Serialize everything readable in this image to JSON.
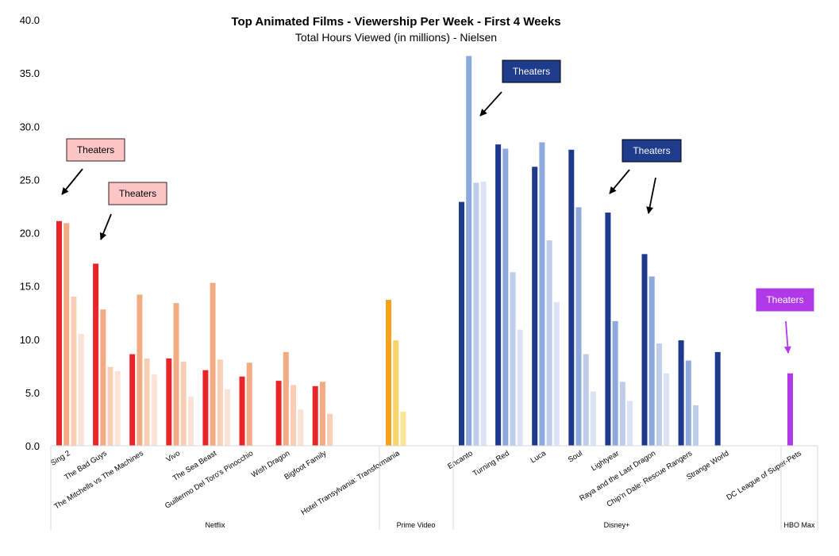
{
  "chart_data": {
    "type": "bar",
    "title": "Top Animated Films - Viewership Per Week - First 4 Weeks",
    "subtitle": "Total Hours Viewed (in millions) - Nielsen",
    "ylim": [
      0,
      40
    ],
    "yticks": [
      "0.0",
      "5.0",
      "10.0",
      "15.0",
      "20.0",
      "25.0",
      "30.0",
      "35.0",
      "40.0"
    ],
    "grid": false,
    "colors": {
      "Netflix": [
        "#e8262a",
        "#f3ab84",
        "#f8cfb6",
        "#fbe3d6"
      ],
      "Prime Video": [
        "#f4a11e",
        "#fad46b",
        "#fde497"
      ],
      "Disney+": [
        "#1e3a8c",
        "#8ea9dc",
        "#bdcdea",
        "#dbe3f4"
      ],
      "HBO Max": [
        "#b03ae8"
      ]
    },
    "groups": [
      {
        "name": "Netflix",
        "films": [
          {
            "name": "Sing 2",
            "values": [
              21.1,
              20.9,
              14.0,
              10.5
            ]
          },
          {
            "name": "The Bad Guys",
            "values": [
              17.1,
              12.8,
              7.4,
              7.0
            ]
          },
          {
            "name": "The Mitchells vs The Machines",
            "values": [
              8.6,
              14.2,
              8.2,
              6.7
            ]
          },
          {
            "name": "Vivo",
            "values": [
              8.2,
              13.4,
              7.9,
              4.6
            ]
          },
          {
            "name": "The Sea Beast",
            "values": [
              7.1,
              15.3,
              8.1,
              5.3
            ]
          },
          {
            "name": "Guillermo Del Toro's Pinocchio",
            "values": [
              6.5,
              7.8
            ]
          },
          {
            "name": "Wish Dragon",
            "values": [
              6.1,
              8.8,
              5.7,
              3.4
            ]
          },
          {
            "name": "Bigfoot Family",
            "values": [
              5.6,
              6.0,
              3.0
            ]
          }
        ]
      },
      {
        "name": "Prime Video",
        "films": [
          {
            "name": "Hotel Transylvania: Transformania",
            "values": [
              13.7,
              9.9,
              3.2
            ]
          }
        ]
      },
      {
        "name": "Disney+",
        "films": [
          {
            "name": "Encanto",
            "values": [
              22.9,
              36.6,
              24.7,
              24.8
            ]
          },
          {
            "name": "Turning Red",
            "values": [
              28.3,
              27.9,
              16.3,
              10.9
            ]
          },
          {
            "name": "Luca",
            "values": [
              26.2,
              28.5,
              19.3,
              13.5
            ]
          },
          {
            "name": "Soul",
            "values": [
              27.8,
              22.4,
              8.6,
              5.1
            ]
          },
          {
            "name": "Lightyear",
            "values": [
              21.9,
              11.7,
              6.0,
              4.2
            ]
          },
          {
            "name": "Raya and the Last Dragon",
            "values": [
              18.0,
              15.9,
              9.6,
              6.8
            ]
          },
          {
            "name": "Chip'n Dale: Rescue Rangers",
            "values": [
              9.9,
              8.0,
              3.8
            ]
          },
          {
            "name": "Strange World",
            "values": [
              8.8
            ]
          }
        ]
      },
      {
        "name": "HBO Max",
        "films": [
          {
            "name": "DC League of Super-Pets",
            "values": [
              6.8
            ]
          }
        ]
      }
    ],
    "annotations": [
      {
        "text": "Theaters",
        "film": "Sing 2",
        "style": "pink"
      },
      {
        "text": "Theaters",
        "film": "The Bad Guys",
        "style": "pink"
      },
      {
        "text": "Theaters",
        "film": "Encanto",
        "style": "navy"
      },
      {
        "text": "Theaters",
        "film": "Lightyear",
        "style": "navy"
      },
      {
        "text": "Theaters",
        "film": "Raya and the Last Dragon",
        "style": "navy"
      },
      {
        "text": "Theaters",
        "film": "DC League of Super-Pets",
        "style": "purple"
      }
    ],
    "annotation_styles": {
      "pink": {
        "fill": "#fcc6c6",
        "stroke": "#3a1e1e",
        "text": "#000000",
        "arrow": "#000000"
      },
      "navy": {
        "fill": "#1f3b8c",
        "stroke": "#000000",
        "text": "#ffffff",
        "arrow": "#000000"
      },
      "purple": {
        "fill": "#b03ae8",
        "stroke": "#b03ae8",
        "text": "#ffffff",
        "arrow": "#b03ae8"
      }
    }
  }
}
